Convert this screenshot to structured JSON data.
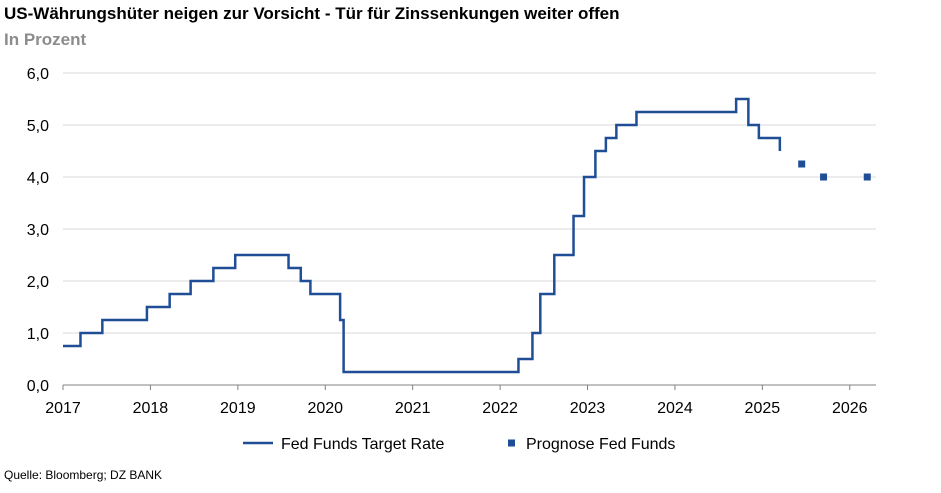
{
  "header": {
    "title": "US-Währungshüter neigen zur Vorsicht - Tür für Zinssenkungen weiter offen",
    "subtitle": "In Prozent"
  },
  "footer": {
    "source": "Quelle: Bloomberg; DZ BANK"
  },
  "chart_data": {
    "type": "line",
    "title": "US-Währungshüter neigen zur Vorsicht - Tür für Zinssenkungen weiter offen",
    "subtitle": "In Prozent",
    "xlabel": "",
    "ylabel": "",
    "xlim": [
      2017,
      2026.3
    ],
    "ylim": [
      0,
      6
    ],
    "x_ticks": [
      2017,
      2018,
      2019,
      2020,
      2021,
      2022,
      2023,
      2024,
      2025,
      2026
    ],
    "y_ticks": [
      {
        "value": 0,
        "label": "0,0"
      },
      {
        "value": 1,
        "label": "1,0"
      },
      {
        "value": 2,
        "label": "2,0"
      },
      {
        "value": 3,
        "label": "3,0"
      },
      {
        "value": 4,
        "label": "4,0"
      },
      {
        "value": 5,
        "label": "5,0"
      },
      {
        "value": 6,
        "label": "6,0"
      }
    ],
    "grid": "horizontal",
    "legend": "bottom",
    "series": [
      {
        "name": "Fed Funds Target Rate",
        "style": "step-line",
        "color": "#1f4e96",
        "x": [
          2017.0,
          2017.2,
          2017.45,
          2017.96,
          2018.22,
          2018.46,
          2018.72,
          2018.97,
          2019.58,
          2019.72,
          2019.83,
          2020.17,
          2020.21,
          2022.21,
          2022.37,
          2022.46,
          2022.62,
          2022.84,
          2022.96,
          2023.09,
          2023.21,
          2023.33,
          2023.56,
          2024.7,
          2024.84,
          2024.96,
          2025.2
        ],
        "y": [
          0.75,
          1.0,
          1.25,
          1.5,
          1.75,
          2.0,
          2.25,
          2.5,
          2.25,
          2.0,
          1.75,
          1.25,
          0.25,
          0.5,
          1.0,
          1.75,
          2.5,
          3.25,
          4.0,
          4.5,
          4.75,
          5.0,
          5.25,
          5.5,
          5.0,
          4.75,
          4.5
        ]
      },
      {
        "name": "Prognose Fed Funds",
        "style": "markers",
        "color": "#1f4e96",
        "x": [
          2025.45,
          2025.7,
          2026.2
        ],
        "y": [
          4.25,
          4.0,
          4.0
        ]
      }
    ]
  },
  "colors": {
    "line": "#1f4e96",
    "grid": "#d9d9d9",
    "axis": "#808080"
  }
}
